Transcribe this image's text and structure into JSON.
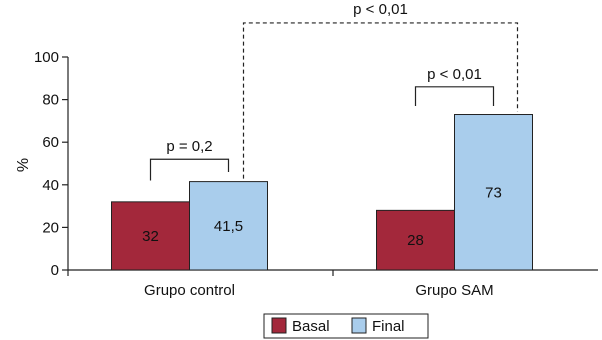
{
  "chart_data": {
    "type": "bar",
    "categories": [
      "Grupo  control",
      "Grupo SAM"
    ],
    "series": [
      {
        "name": "Basal",
        "values": [
          32,
          28
        ],
        "labels": [
          "32",
          "28"
        ],
        "color": "#a3283b"
      },
      {
        "name": "Final",
        "values": [
          41.5,
          73
        ],
        "labels": [
          "41,5",
          "73"
        ],
        "color": "#a9cdec"
      }
    ],
    "ylabel": "%",
    "ylim": [
      0,
      100
    ],
    "yticks": [
      0,
      20,
      40,
      60,
      80,
      100
    ],
    "legend_position": "bottom",
    "annotations": [
      {
        "text": "p = 0,2",
        "compares": "Grupo  control: Basal vs Final"
      },
      {
        "text": "p < 0,01",
        "compares": "Grupo SAM: Basal vs Final"
      },
      {
        "text": "p < 0,01",
        "compares": "Final: Grupo  control vs Grupo SAM"
      }
    ]
  }
}
